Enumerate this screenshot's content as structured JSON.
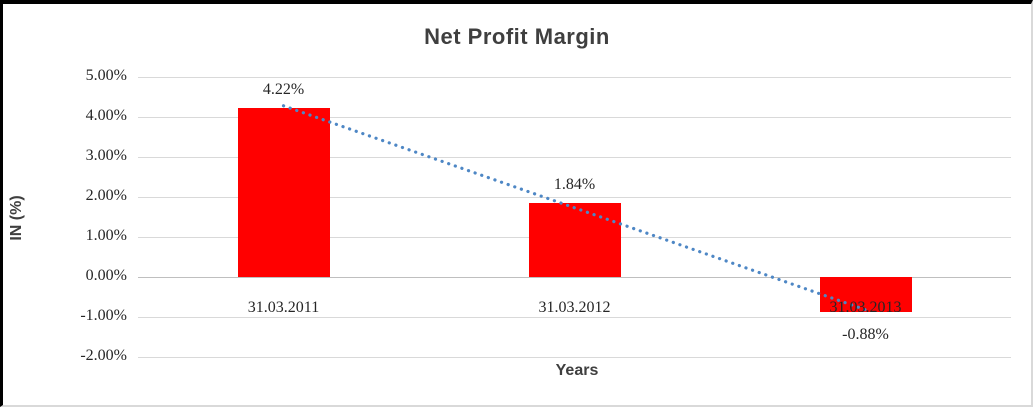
{
  "window": {
    "background": "#FFFFFF",
    "frame_border_color": "#000000",
    "edge_border_color": "#D9D9D9"
  },
  "chart_data": {
    "type": "bar",
    "title": "Net Profit Margin",
    "xlabel": "Years",
    "ylabel": "IN (%)",
    "categories": [
      "31.03.2011",
      "31.03.2012",
      "31.03.2013"
    ],
    "values": [
      4.22,
      1.84,
      -0.88
    ],
    "data_labels": [
      "4.22%",
      "1.84%",
      "-0.88%"
    ],
    "ylim": [
      -2,
      5
    ],
    "ytick_step": 1,
    "ytick_labels": [
      "5.00%",
      "4.00%",
      "3.00%",
      "2.00%",
      "1.00%",
      "0.00%",
      "-1.00%",
      "-2.00%"
    ],
    "grid": true,
    "legend_position": "none",
    "bar_color": "#FF0000",
    "gridline_color": "#D9D9D9",
    "zero_axis_color": "#BFBFBF",
    "text_color": "#262626",
    "title_color": "#3F3F3F",
    "trendline": {
      "type": "linear",
      "style": "dotted",
      "color": "#4E87C5",
      "start_value": 4.28,
      "end_value": -0.82
    }
  }
}
